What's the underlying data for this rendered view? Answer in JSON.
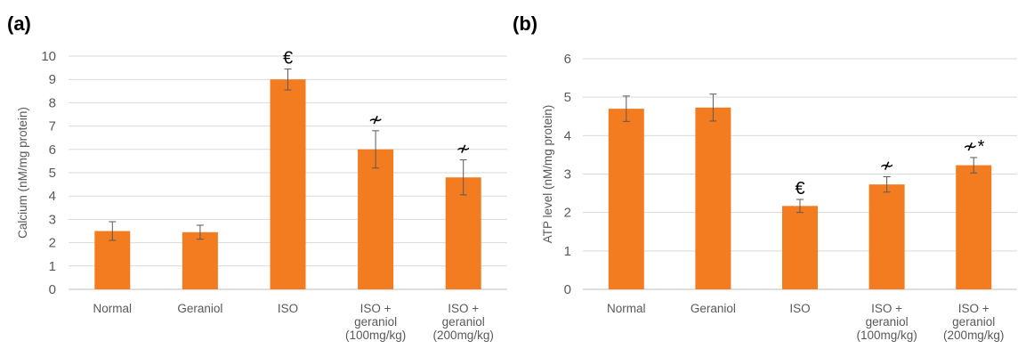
{
  "panels": [
    {
      "label": "(a)",
      "chart_data": {
        "type": "bar",
        "categories": [
          [
            "Normal"
          ],
          [
            "Geraniol"
          ],
          [
            "ISO"
          ],
          [
            "ISO +",
            "geraniol",
            "(100mg/kg)"
          ],
          [
            "ISO +",
            "geraniol",
            "(200mg/kg)"
          ]
        ],
        "values": [
          2.5,
          2.45,
          9.0,
          6.0,
          4.8
        ],
        "errors": [
          0.4,
          0.3,
          0.45,
          0.8,
          0.75
        ],
        "annotations": [
          "",
          "",
          "€",
          "≁",
          "≁"
        ],
        "ylabel": "Calcium (nM/mg protein)",
        "xlabel": "",
        "ylim": [
          0,
          10
        ],
        "yticks": [
          0,
          1,
          2,
          3,
          4,
          5,
          6,
          7,
          8,
          9,
          10
        ],
        "grid": true,
        "bar_color": "#F47C20"
      }
    },
    {
      "label": "(b)",
      "chart_data": {
        "type": "bar",
        "categories": [
          [
            "Normal"
          ],
          [
            "Geraniol"
          ],
          [
            "ISO"
          ],
          [
            "ISO +",
            "geraniol",
            "(100mg/kg)"
          ],
          [
            "ISO +",
            "geraniol",
            "(200mg/kg)"
          ]
        ],
        "values": [
          4.7,
          4.73,
          2.17,
          2.73,
          3.23
        ],
        "errors": [
          0.33,
          0.35,
          0.17,
          0.2,
          0.2
        ],
        "annotations": [
          "",
          "",
          "€",
          "≁",
          "≁*"
        ],
        "ylabel": "ATP level (nM/mg protein)",
        "xlabel": "",
        "ylim": [
          0,
          6
        ],
        "yticks": [
          0,
          1,
          2,
          3,
          4,
          5,
          6
        ],
        "grid": true,
        "bar_color": "#F47C20"
      }
    }
  ]
}
